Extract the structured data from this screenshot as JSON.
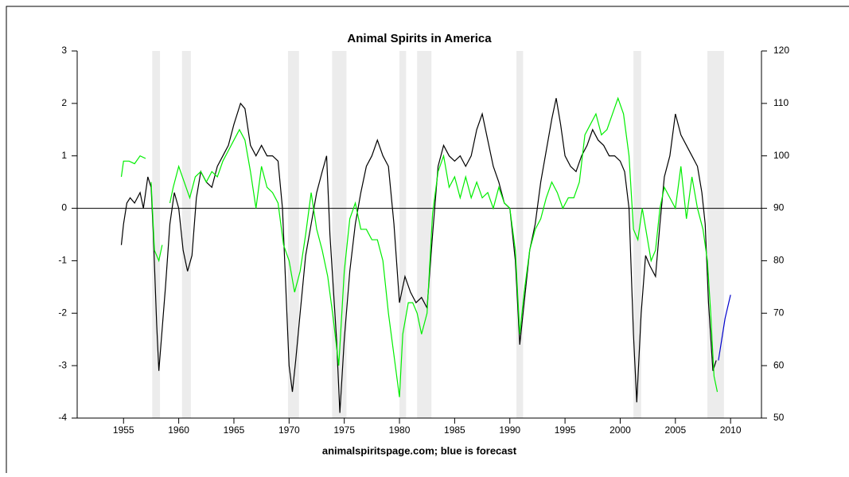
{
  "chart_data": {
    "type": "line",
    "title": "Animal Spirits in America",
    "xlabel": "animalspiritspage.com; blue is forecast",
    "xlim": [
      1950.8,
      2012.8
    ],
    "xticks": [
      1955,
      1960,
      1965,
      1970,
      1975,
      1980,
      1985,
      1990,
      1995,
      2000,
      2005,
      2010
    ],
    "ylim": [
      -4,
      3
    ],
    "yticks": [
      -4,
      -3,
      -2,
      -1,
      0,
      1,
      2,
      3
    ],
    "y2lim": [
      50,
      120
    ],
    "y2ticks": [
      50,
      60,
      70,
      80,
      90,
      100,
      110,
      120
    ],
    "bands": [
      [
        1957.6,
        1958.3
      ],
      [
        1960.3,
        1961.1
      ],
      [
        1969.9,
        1970.9
      ],
      [
        1973.9,
        1975.2
      ],
      [
        1980.0,
        1980.6
      ],
      [
        1981.6,
        1982.9
      ],
      [
        1990.6,
        1991.2
      ],
      [
        2001.2,
        2001.9
      ],
      [
        2007.9,
        2009.4
      ]
    ],
    "band_color": "#ececec",
    "series": [
      {
        "color": "#000000",
        "axis": "y",
        "x": [
          1954.8,
          1955.0,
          1955.3,
          1955.6,
          1956.0,
          1956.5,
          1956.8,
          1957.2,
          1957.5,
          1957.7,
          1958.0,
          1958.2,
          1958.5,
          1958.8,
          1959.2,
          1959.6,
          1960.0,
          1960.4,
          1960.8,
          1961.2,
          1961.6,
          1962.0,
          1962.5,
          1963.0,
          1963.5,
          1964.0,
          1964.5,
          1965.0,
          1965.6,
          1966.0,
          1966.5,
          1967.0,
          1967.5,
          1968.0,
          1968.5,
          1969.0,
          1969.4,
          1969.7,
          1970.0,
          1970.3,
          1970.6,
          1971.0,
          1971.5,
          1972.0,
          1972.5,
          1973.0,
          1973.4,
          1973.7,
          1974.0,
          1974.3,
          1974.6,
          1975.0,
          1975.5,
          1976.0,
          1976.5,
          1977.0,
          1977.5,
          1978.0,
          1978.5,
          1979.0,
          1979.5,
          1980.0,
          1980.5,
          1981.0,
          1981.5,
          1982.0,
          1982.5,
          1983.0,
          1983.5,
          1984.0,
          1984.5,
          1985.0,
          1985.5,
          1986.0,
          1986.5,
          1987.0,
          1987.5,
          1988.0,
          1988.5,
          1989.0,
          1989.5,
          1990.0,
          1990.5,
          1990.9,
          1991.3,
          1991.8,
          1992.3,
          1992.8,
          1993.3,
          1993.8,
          1994.2,
          1994.6,
          1995.0,
          1995.5,
          1996.0,
          1996.5,
          1997.0,
          1997.5,
          1998.0,
          1998.5,
          1999.0,
          1999.5,
          2000.0,
          2000.4,
          2000.8,
          2001.2,
          2001.5,
          2001.9,
          2002.3,
          2002.7,
          2003.2,
          2003.6,
          2004.0,
          2004.5,
          2005.0,
          2005.5,
          2006.0,
          2006.5,
          2007.0,
          2007.4,
          2007.7,
          2008.0,
          2008.4,
          2008.7
        ],
        "values": [
          -0.7,
          -0.3,
          0.1,
          0.2,
          0.1,
          0.3,
          0.0,
          0.6,
          0.4,
          -0.5,
          -2.2,
          -3.1,
          -2.3,
          -1.5,
          -0.3,
          0.3,
          0.0,
          -0.8,
          -1.2,
          -0.9,
          0.2,
          0.7,
          0.5,
          0.4,
          0.8,
          1.0,
          1.2,
          1.6,
          2.0,
          1.9,
          1.2,
          1.0,
          1.2,
          1.0,
          1.0,
          0.9,
          0.0,
          -1.5,
          -3.0,
          -3.5,
          -2.9,
          -2.0,
          -0.9,
          -0.3,
          0.3,
          0.7,
          1.0,
          -0.5,
          -1.5,
          -2.5,
          -3.9,
          -2.5,
          -1.2,
          -0.3,
          0.3,
          0.8,
          1.0,
          1.3,
          1.0,
          0.8,
          -0.3,
          -1.8,
          -1.3,
          -1.6,
          -1.8,
          -1.7,
          -1.9,
          -0.5,
          0.8,
          1.2,
          1.0,
          0.9,
          1.0,
          0.8,
          1.0,
          1.5,
          1.8,
          1.3,
          0.8,
          0.5,
          0.1,
          0.0,
          -1.0,
          -2.6,
          -1.8,
          -0.8,
          -0.3,
          0.5,
          1.1,
          1.7,
          2.1,
          1.6,
          1.0,
          0.8,
          0.7,
          1.0,
          1.2,
          1.5,
          1.3,
          1.2,
          1.0,
          1.0,
          0.9,
          0.7,
          0.0,
          -2.4,
          -3.7,
          -2.0,
          -0.9,
          -1.1,
          -1.3,
          -0.3,
          0.6,
          1.0,
          1.8,
          1.4,
          1.2,
          1.0,
          0.8,
          0.3,
          -0.3,
          -1.8,
          -3.1,
          -2.9
        ]
      },
      {
        "color": "#00ee00",
        "axis": "y2",
        "x": [
          1954.8,
          1955.0,
          1955.5,
          1956.0,
          1956.5,
          1957.0,
          1957.2,
          1957.5,
          1957.8,
          1958.2,
          1958.5,
          1958.8,
          1959.2,
          1959.5,
          1960.0,
          1960.5,
          1961.0,
          1961.5,
          1962.0,
          1962.5,
          1963.0,
          1963.5,
          1964.0,
          1964.5,
          1965.0,
          1965.5,
          1966.0,
          1966.5,
          1967.0,
          1967.5,
          1968.0,
          1968.5,
          1969.0,
          1969.5,
          1970.0,
          1970.5,
          1971.0,
          1971.5,
          1972.0,
          1972.5,
          1973.0,
          1973.5,
          1974.0,
          1974.5,
          1975.0,
          1975.5,
          1976.0,
          1976.5,
          1977.0,
          1977.5,
          1978.0,
          1978.5,
          1979.0,
          1979.5,
          1980.0,
          1980.3,
          1980.8,
          1981.2,
          1981.6,
          1982.0,
          1982.5,
          1983.0,
          1983.5,
          1984.0,
          1984.5,
          1985.0,
          1985.5,
          1986.0,
          1986.5,
          1987.0,
          1987.5,
          1988.0,
          1988.5,
          1989.0,
          1989.5,
          1990.0,
          1990.5,
          1990.9,
          1991.3,
          1991.8,
          1992.3,
          1992.8,
          1993.3,
          1993.8,
          1994.3,
          1994.8,
          1995.3,
          1995.8,
          1996.3,
          1996.8,
          1997.3,
          1997.8,
          1998.3,
          1998.8,
          1999.3,
          1999.8,
          2000.3,
          2000.8,
          2001.2,
          2001.6,
          2002.0,
          2002.4,
          2002.8,
          2003.2,
          2003.6,
          2004.0,
          2004.5,
          2005.0,
          2005.5,
          2006.0,
          2006.5,
          2007.0,
          2007.5,
          2007.9,
          2008.2,
          2008.5,
          2008.8
        ],
        "values": [
          96,
          99,
          99,
          98.5,
          100,
          99.5,
          null,
          95,
          82,
          80,
          83,
          null,
          91,
          94,
          98,
          95,
          92,
          96,
          97,
          95,
          97,
          96,
          99,
          101,
          103,
          105,
          103,
          97,
          90,
          98,
          94,
          93,
          91,
          83,
          80,
          74,
          78,
          85,
          93,
          86,
          82,
          77,
          69,
          60,
          78,
          88,
          91,
          86,
          86,
          84,
          84,
          80,
          70,
          62,
          54,
          66,
          72,
          72,
          70,
          66,
          70,
          89,
          97,
          100,
          94,
          96,
          92,
          96,
          92,
          95,
          92,
          93,
          90,
          94,
          91,
          90,
          82,
          66,
          74,
          82,
          86,
          88,
          92,
          95,
          93,
          90,
          92,
          92,
          95,
          104,
          106,
          108,
          104,
          105,
          108,
          111,
          108,
          100,
          86,
          84,
          90,
          85,
          80,
          82,
          90,
          94,
          92,
          90,
          98,
          88,
          96,
          90,
          86,
          80,
          70,
          58,
          55
        ]
      },
      {
        "color": "#0000cc",
        "axis": "y",
        "x": [
          2008.9,
          2009.5,
          2010.0
        ],
        "values": [
          -2.9,
          -2.1,
          -1.65
        ]
      }
    ]
  }
}
